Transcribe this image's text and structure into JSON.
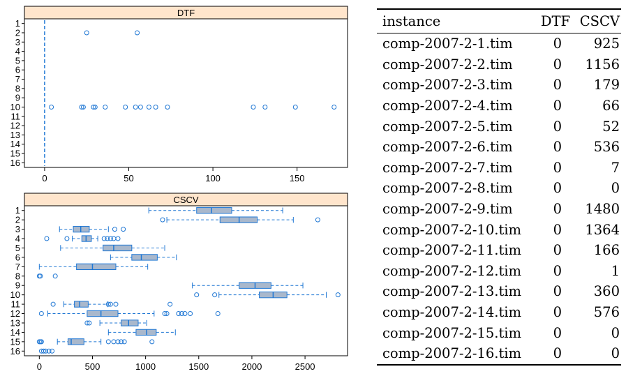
{
  "chart_data": [
    {
      "type": "box",
      "title": "DTF",
      "categories": [
        "1",
        "2",
        "3",
        "4",
        "5",
        "6",
        "7",
        "8",
        "9",
        "10",
        "11",
        "12",
        "13",
        "14",
        "15",
        "16"
      ],
      "x_ticks": [
        0,
        50,
        100,
        150
      ],
      "xlim": [
        -12,
        180
      ],
      "orientation": "horizontal",
      "color": "#1f77d4",
      "box_fill": "#a9b8cc",
      "series": [
        {
          "q1": 0,
          "median": 0,
          "q3": 0,
          "wlo": 0,
          "whi": 0,
          "outliers": []
        },
        {
          "q1": 0,
          "median": 0,
          "q3": 0,
          "wlo": 0,
          "whi": 0,
          "outliers": [
            25,
            55
          ]
        },
        {
          "q1": 0,
          "median": 0,
          "q3": 0,
          "wlo": 0,
          "whi": 0,
          "outliers": []
        },
        {
          "q1": 0,
          "median": 0,
          "q3": 0,
          "wlo": 0,
          "whi": 0,
          "outliers": []
        },
        {
          "q1": 0,
          "median": 0,
          "q3": 0,
          "wlo": 0,
          "whi": 0,
          "outliers": []
        },
        {
          "q1": 0,
          "median": 0,
          "q3": 0,
          "wlo": 0,
          "whi": 0,
          "outliers": []
        },
        {
          "q1": 0,
          "median": 0,
          "q3": 0,
          "wlo": 0,
          "whi": 0,
          "outliers": []
        },
        {
          "q1": 0,
          "median": 0,
          "q3": 0,
          "wlo": 0,
          "whi": 0,
          "outliers": []
        },
        {
          "q1": 0,
          "median": 0,
          "q3": 0,
          "wlo": 0,
          "whi": 0,
          "outliers": []
        },
        {
          "q1": 0,
          "median": 0,
          "q3": 0,
          "wlo": 0,
          "whi": 0,
          "outliers": [
            4,
            22,
            23,
            29,
            30,
            36,
            48,
            54,
            57,
            62,
            66,
            73,
            124,
            131,
            149,
            172
          ]
        },
        {
          "q1": 0,
          "median": 0,
          "q3": 0,
          "wlo": 0,
          "whi": 0,
          "outliers": []
        },
        {
          "q1": 0,
          "median": 0,
          "q3": 0,
          "wlo": 0,
          "whi": 0,
          "outliers": []
        },
        {
          "q1": 0,
          "median": 0,
          "q3": 0,
          "wlo": 0,
          "whi": 0,
          "outliers": []
        },
        {
          "q1": 0,
          "median": 0,
          "q3": 0,
          "wlo": 0,
          "whi": 0,
          "outliers": []
        },
        {
          "q1": 0,
          "median": 0,
          "q3": 0,
          "wlo": 0,
          "whi": 0,
          "outliers": []
        },
        {
          "q1": 0,
          "median": 0,
          "q3": 0,
          "wlo": 0,
          "whi": 0,
          "outliers": []
        }
      ]
    },
    {
      "type": "box",
      "title": "CSCV",
      "categories": [
        "1",
        "2",
        "3",
        "4",
        "5",
        "6",
        "7",
        "8",
        "9",
        "10",
        "11",
        "12",
        "13",
        "14",
        "15",
        "16"
      ],
      "x_ticks": [
        0,
        500,
        1000,
        1500,
        2000,
        2500
      ],
      "xlim": [
        -140,
        2900
      ],
      "orientation": "horizontal",
      "color": "#1f77d4",
      "box_fill": "#a9b8cc",
      "series": [
        {
          "q1": 1480,
          "median": 1620,
          "q3": 1810,
          "wlo": 1030,
          "whi": 2290,
          "outliers": []
        },
        {
          "q1": 1700,
          "median": 1880,
          "q3": 2050,
          "wlo": 1200,
          "whi": 2390,
          "outliers": [
            1160,
            2620
          ]
        },
        {
          "q1": 320,
          "median": 390,
          "q3": 470,
          "wlo": 190,
          "whi": 650,
          "outliers": [
            710,
            790
          ]
        },
        {
          "q1": 400,
          "median": 440,
          "q3": 490,
          "wlo": 310,
          "whi": 550,
          "outliers": [
            70,
            260,
            610,
            640,
            670,
            700,
            740
          ]
        },
        {
          "q1": 600,
          "median": 700,
          "q3": 870,
          "wlo": 200,
          "whi": 1180,
          "outliers": []
        },
        {
          "q1": 870,
          "median": 960,
          "q3": 1110,
          "wlo": 670,
          "whi": 1290,
          "outliers": []
        },
        {
          "q1": 350,
          "median": 500,
          "q3": 720,
          "wlo": 0,
          "whi": 1020,
          "outliers": []
        },
        {
          "q1": 0,
          "median": 0,
          "q3": 0,
          "wlo": 0,
          "whi": 0,
          "outliers": [
            0,
            10,
            150
          ]
        },
        {
          "q1": 1880,
          "median": 2030,
          "q3": 2180,
          "wlo": 1440,
          "whi": 2480,
          "outliers": []
        },
        {
          "q1": 2070,
          "median": 2200,
          "q3": 2330,
          "wlo": 1690,
          "whi": 2700,
          "outliers": [
            1480,
            1650,
            2810
          ]
        },
        {
          "q1": 330,
          "median": 380,
          "q3": 460,
          "wlo": 230,
          "whi": 640,
          "outliers": [
            130,
            650,
            670,
            720,
            1230
          ]
        },
        {
          "q1": 450,
          "median": 580,
          "q3": 740,
          "wlo": 80,
          "whi": 1080,
          "outliers": [
            20,
            1180,
            1200,
            1310,
            1340,
            1370,
            1420,
            1680
          ]
        },
        {
          "q1": 770,
          "median": 840,
          "q3": 930,
          "wlo": 570,
          "whi": 1010,
          "outliers": [
            450,
            470
          ]
        },
        {
          "q1": 910,
          "median": 1010,
          "q3": 1100,
          "wlo": 650,
          "whi": 1280,
          "outliers": []
        },
        {
          "q1": 270,
          "median": 300,
          "q3": 420,
          "wlo": 170,
          "whi": 580,
          "outliers": [
            0,
            10,
            20,
            650,
            700,
            740,
            770,
            800,
            1060
          ]
        },
        {
          "q1": 0,
          "median": 0,
          "q3": 0,
          "wlo": 0,
          "whi": 0,
          "outliers": [
            20,
            40,
            60,
            90,
            120
          ]
        }
      ]
    },
    {
      "type": "table",
      "columns": [
        "instance",
        "DTF",
        "CSCV"
      ],
      "rows": [
        [
          "comp-2007-2-1.tim",
          "0",
          "925"
        ],
        [
          "comp-2007-2-2.tim",
          "0",
          "1156"
        ],
        [
          "comp-2007-2-3.tim",
          "0",
          "179"
        ],
        [
          "comp-2007-2-4.tim",
          "0",
          "66"
        ],
        [
          "comp-2007-2-5.tim",
          "0",
          "52"
        ],
        [
          "comp-2007-2-6.tim",
          "0",
          "536"
        ],
        [
          "comp-2007-2-7.tim",
          "0",
          "7"
        ],
        [
          "comp-2007-2-8.tim",
          "0",
          "0"
        ],
        [
          "comp-2007-2-9.tim",
          "0",
          "1480"
        ],
        [
          "comp-2007-2-10.tim",
          "0",
          "1364"
        ],
        [
          "comp-2007-2-11.tim",
          "0",
          "166"
        ],
        [
          "comp-2007-2-12.tim",
          "0",
          "1"
        ],
        [
          "comp-2007-2-13.tim",
          "0",
          "360"
        ],
        [
          "comp-2007-2-14.tim",
          "0",
          "576"
        ],
        [
          "comp-2007-2-15.tim",
          "0",
          "0"
        ],
        [
          "comp-2007-2-16.tim",
          "0",
          "0"
        ]
      ]
    }
  ]
}
